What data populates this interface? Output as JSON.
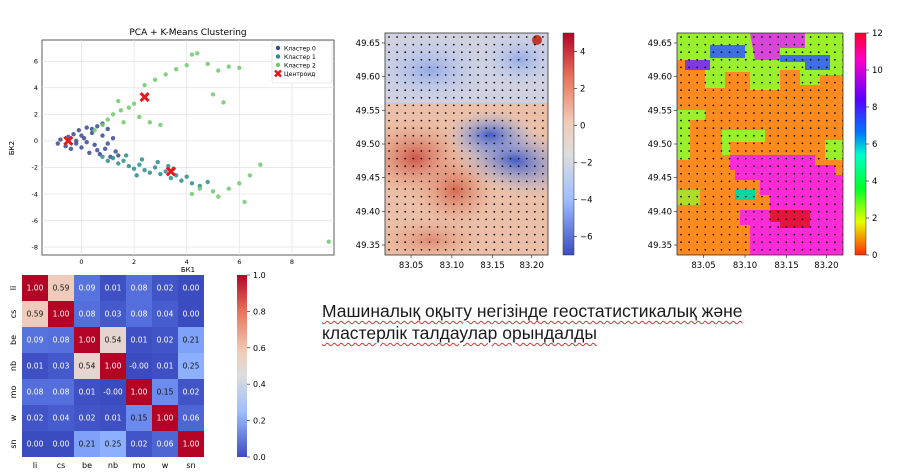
{
  "caption": {
    "line1": "Машиналық оқыту негізінде геостатистикалық және",
    "line2": "кластерлік талдаулар орындалды"
  },
  "chart_data": [
    {
      "type": "scatter",
      "title": "PCA + K-Means Clustering",
      "xlabel": "БК1",
      "ylabel": "БК2",
      "xlim": [
        -1.5,
        9.6
      ],
      "ylim": [
        -8.6,
        7.6
      ],
      "xticks": [
        0,
        2,
        4,
        6,
        8
      ],
      "yticks": [
        -8,
        -6,
        -4,
        -2,
        0,
        2,
        4,
        6
      ],
      "grid": true,
      "legend_position": "top-right",
      "series": [
        {
          "name": "Кластер 0",
          "color": "#3b4a8f",
          "points": [
            [
              -0.9,
              -0.2
            ],
            [
              -0.8,
              0.1
            ],
            [
              -0.6,
              -0.4
            ],
            [
              -0.5,
              0.3
            ],
            [
              -0.4,
              -0.6
            ],
            [
              -0.3,
              0.5
            ],
            [
              -0.2,
              -0.2
            ],
            [
              -0.1,
              0.8
            ],
            [
              0.0,
              -0.5
            ],
            [
              0.1,
              0.2
            ],
            [
              0.2,
              1.0
            ],
            [
              0.3,
              -0.9
            ],
            [
              0.4,
              0.6
            ],
            [
              0.5,
              -0.3
            ],
            [
              0.6,
              1.1
            ],
            [
              0.7,
              -1.0
            ],
            [
              0.8,
              0.4
            ],
            [
              0.9,
              -0.6
            ],
            [
              1.0,
              0.9
            ],
            [
              1.1,
              -1.2
            ],
            [
              1.2,
              0.2
            ],
            [
              1.3,
              -0.8
            ],
            [
              0.0,
              0.4
            ],
            [
              0.2,
              -0.1
            ],
            [
              0.4,
              0.9
            ],
            [
              0.6,
              -0.7
            ],
            [
              0.8,
              1.3
            ],
            [
              1.0,
              -0.2
            ],
            [
              1.4,
              -1.1
            ],
            [
              -0.2,
              0.0
            ]
          ]
        },
        {
          "name": "Кластер 1",
          "color": "#2d8c8c",
          "points": [
            [
              0.8,
              -1.2
            ],
            [
              1.0,
              -1.5
            ],
            [
              1.2,
              -1.3
            ],
            [
              1.4,
              -1.7
            ],
            [
              1.6,
              -1.5
            ],
            [
              1.8,
              -1.9
            ],
            [
              2.0,
              -2.1
            ],
            [
              2.2,
              -1.8
            ],
            [
              2.4,
              -2.2
            ],
            [
              2.6,
              -2.4
            ],
            [
              2.8,
              -2.0
            ],
            [
              3.0,
              -2.5
            ],
            [
              3.2,
              -2.3
            ],
            [
              3.4,
              -2.8
            ],
            [
              3.6,
              -2.6
            ],
            [
              3.8,
              -3.0
            ],
            [
              4.0,
              -2.7
            ],
            [
              4.2,
              -3.2
            ],
            [
              2.3,
              -1.4
            ],
            [
              2.9,
              -1.6
            ],
            [
              3.5,
              -2.1
            ],
            [
              4.5,
              -3.4
            ],
            [
              4.8,
              -3.1
            ],
            [
              1.7,
              -1.1
            ],
            [
              2.1,
              -2.6
            ],
            [
              3.3,
              -1.9
            ]
          ]
        },
        {
          "name": "Кластер 2",
          "color": "#6fc96f",
          "points": [
            [
              0.5,
              0.8
            ],
            [
              0.8,
              1.2
            ],
            [
              1.0,
              1.6
            ],
            [
              1.2,
              2.0
            ],
            [
              1.5,
              2.3
            ],
            [
              1.8,
              2.5
            ],
            [
              2.0,
              2.8
            ],
            [
              1.6,
              1.4
            ],
            [
              2.2,
              1.8
            ],
            [
              1.4,
              3.0
            ],
            [
              2.4,
              4.2
            ],
            [
              2.8,
              4.6
            ],
            [
              3.2,
              5.0
            ],
            [
              3.6,
              5.4
            ],
            [
              4.0,
              5.7
            ],
            [
              4.2,
              6.5
            ],
            [
              4.4,
              6.6
            ],
            [
              4.8,
              5.8
            ],
            [
              5.2,
              5.3
            ],
            [
              5.6,
              5.6
            ],
            [
              6.0,
              5.5
            ],
            [
              5.0,
              3.5
            ],
            [
              5.4,
              2.9
            ],
            [
              4.5,
              -3.6
            ],
            [
              5.0,
              -3.8
            ],
            [
              5.6,
              -3.6
            ],
            [
              6.0,
              -3.2
            ],
            [
              6.4,
              -2.6
            ],
            [
              6.8,
              -1.8
            ],
            [
              5.2,
              -4.2
            ],
            [
              6.2,
              -4.6
            ],
            [
              9.4,
              -7.6
            ],
            [
              4.2,
              -4.0
            ],
            [
              2.6,
              1.4
            ],
            [
              3.0,
              1.2
            ]
          ]
        }
      ],
      "centroids": {
        "name": "Центроид",
        "color": "#e41a1c",
        "points": [
          [
            -0.5,
            0.0
          ],
          [
            2.4,
            3.3
          ],
          [
            3.4,
            -2.3
          ]
        ]
      }
    },
    {
      "type": "heatmap",
      "xticks": [
        "83.05",
        "83.10",
        "83.15",
        "83.20"
      ],
      "yticks": [
        "49.65",
        "49.60",
        "49.55",
        "49.50",
        "49.45",
        "49.40",
        "49.35"
      ],
      "colorbar_ticks": [
        "4",
        "2",
        "0",
        "−2",
        "−4",
        "−6"
      ],
      "colorbar_range": [
        -7,
        5
      ],
      "cmap": "coolwarm"
    },
    {
      "type": "heatmap",
      "xticks": [
        "83.05",
        "83.10",
        "83.15",
        "83.20"
      ],
      "yticks": [
        "49.65",
        "49.60",
        "49.55",
        "49.50",
        "49.45",
        "49.40",
        "49.35"
      ],
      "colorbar_ticks": [
        "12",
        "10",
        "8",
        "6",
        "4",
        "2",
        "0"
      ],
      "colorbar_range": [
        0,
        12
      ],
      "cmap": "gist_rainbow"
    },
    {
      "type": "heatmap",
      "labels": [
        "li",
        "cs",
        "be",
        "nb",
        "mo",
        "w",
        "sn"
      ],
      "matrix": [
        [
          "1.00",
          "0.59",
          "0.09",
          "0.01",
          "0.08",
          "0.02",
          "0.00"
        ],
        [
          "0.59",
          "1.00",
          "0.08",
          "0.03",
          "0.08",
          "0.04",
          "0.00"
        ],
        [
          "0.09",
          "0.08",
          "1.00",
          "0.54",
          "0.01",
          "0.02",
          "0.21"
        ],
        [
          "0.01",
          "0.03",
          "0.54",
          "1.00",
          "-0.00",
          "0.01",
          "0.25"
        ],
        [
          "0.08",
          "0.08",
          "0.01",
          "-0.00",
          "1.00",
          "0.15",
          "0.02"
        ],
        [
          "0.02",
          "0.04",
          "0.02",
          "0.01",
          "0.15",
          "1.00",
          "0.06"
        ],
        [
          "0.00",
          "0.00",
          "0.21",
          "0.25",
          "0.02",
          "0.06",
          "1.00"
        ]
      ],
      "colorbar_ticks": [
        "1.0",
        "0.8",
        "0.6",
        "0.4",
        "0.2",
        "0.0"
      ],
      "colorbar_range": [
        0,
        1
      ],
      "cmap": "coolwarm"
    }
  ]
}
